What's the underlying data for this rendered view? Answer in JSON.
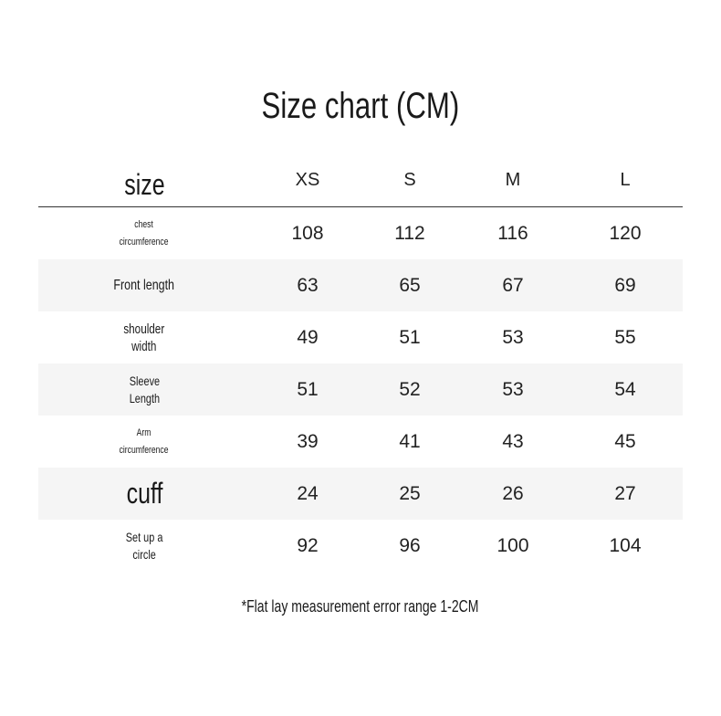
{
  "title": "Size chart (CM)",
  "header": {
    "label": "size",
    "sizes": [
      "XS",
      "S",
      "M",
      "L"
    ]
  },
  "rows": [
    {
      "label": [
        "chest",
        "circumference"
      ],
      "values": [
        "108",
        "112",
        "116",
        "120"
      ],
      "size": 11
    },
    {
      "label": [
        "Front length"
      ],
      "values": [
        "63",
        "65",
        "67",
        "69"
      ],
      "size": 16
    },
    {
      "label": [
        "shoulder",
        "width"
      ],
      "values": [
        "49",
        "51",
        "53",
        "55"
      ],
      "size": 15
    },
    {
      "label": [
        "Sleeve",
        "Length"
      ],
      "values": [
        "51",
        "52",
        "53",
        "54"
      ],
      "size": 14
    },
    {
      "label": [
        "Arm",
        "circumference"
      ],
      "values": [
        "39",
        "41",
        "43",
        "45"
      ],
      "size": 11
    },
    {
      "label": [
        "cuff"
      ],
      "values": [
        "24",
        "25",
        "26",
        "27"
      ],
      "size": 32
    },
    {
      "label": [
        "Set up a",
        "circle"
      ],
      "values": [
        "92",
        "96",
        "100",
        "104"
      ],
      "size": 14
    }
  ],
  "note": "*Flat lay measurement error range 1-2CM",
  "colors": {
    "alt_row": "#f5f5f5",
    "text": "#1a1a1a"
  }
}
